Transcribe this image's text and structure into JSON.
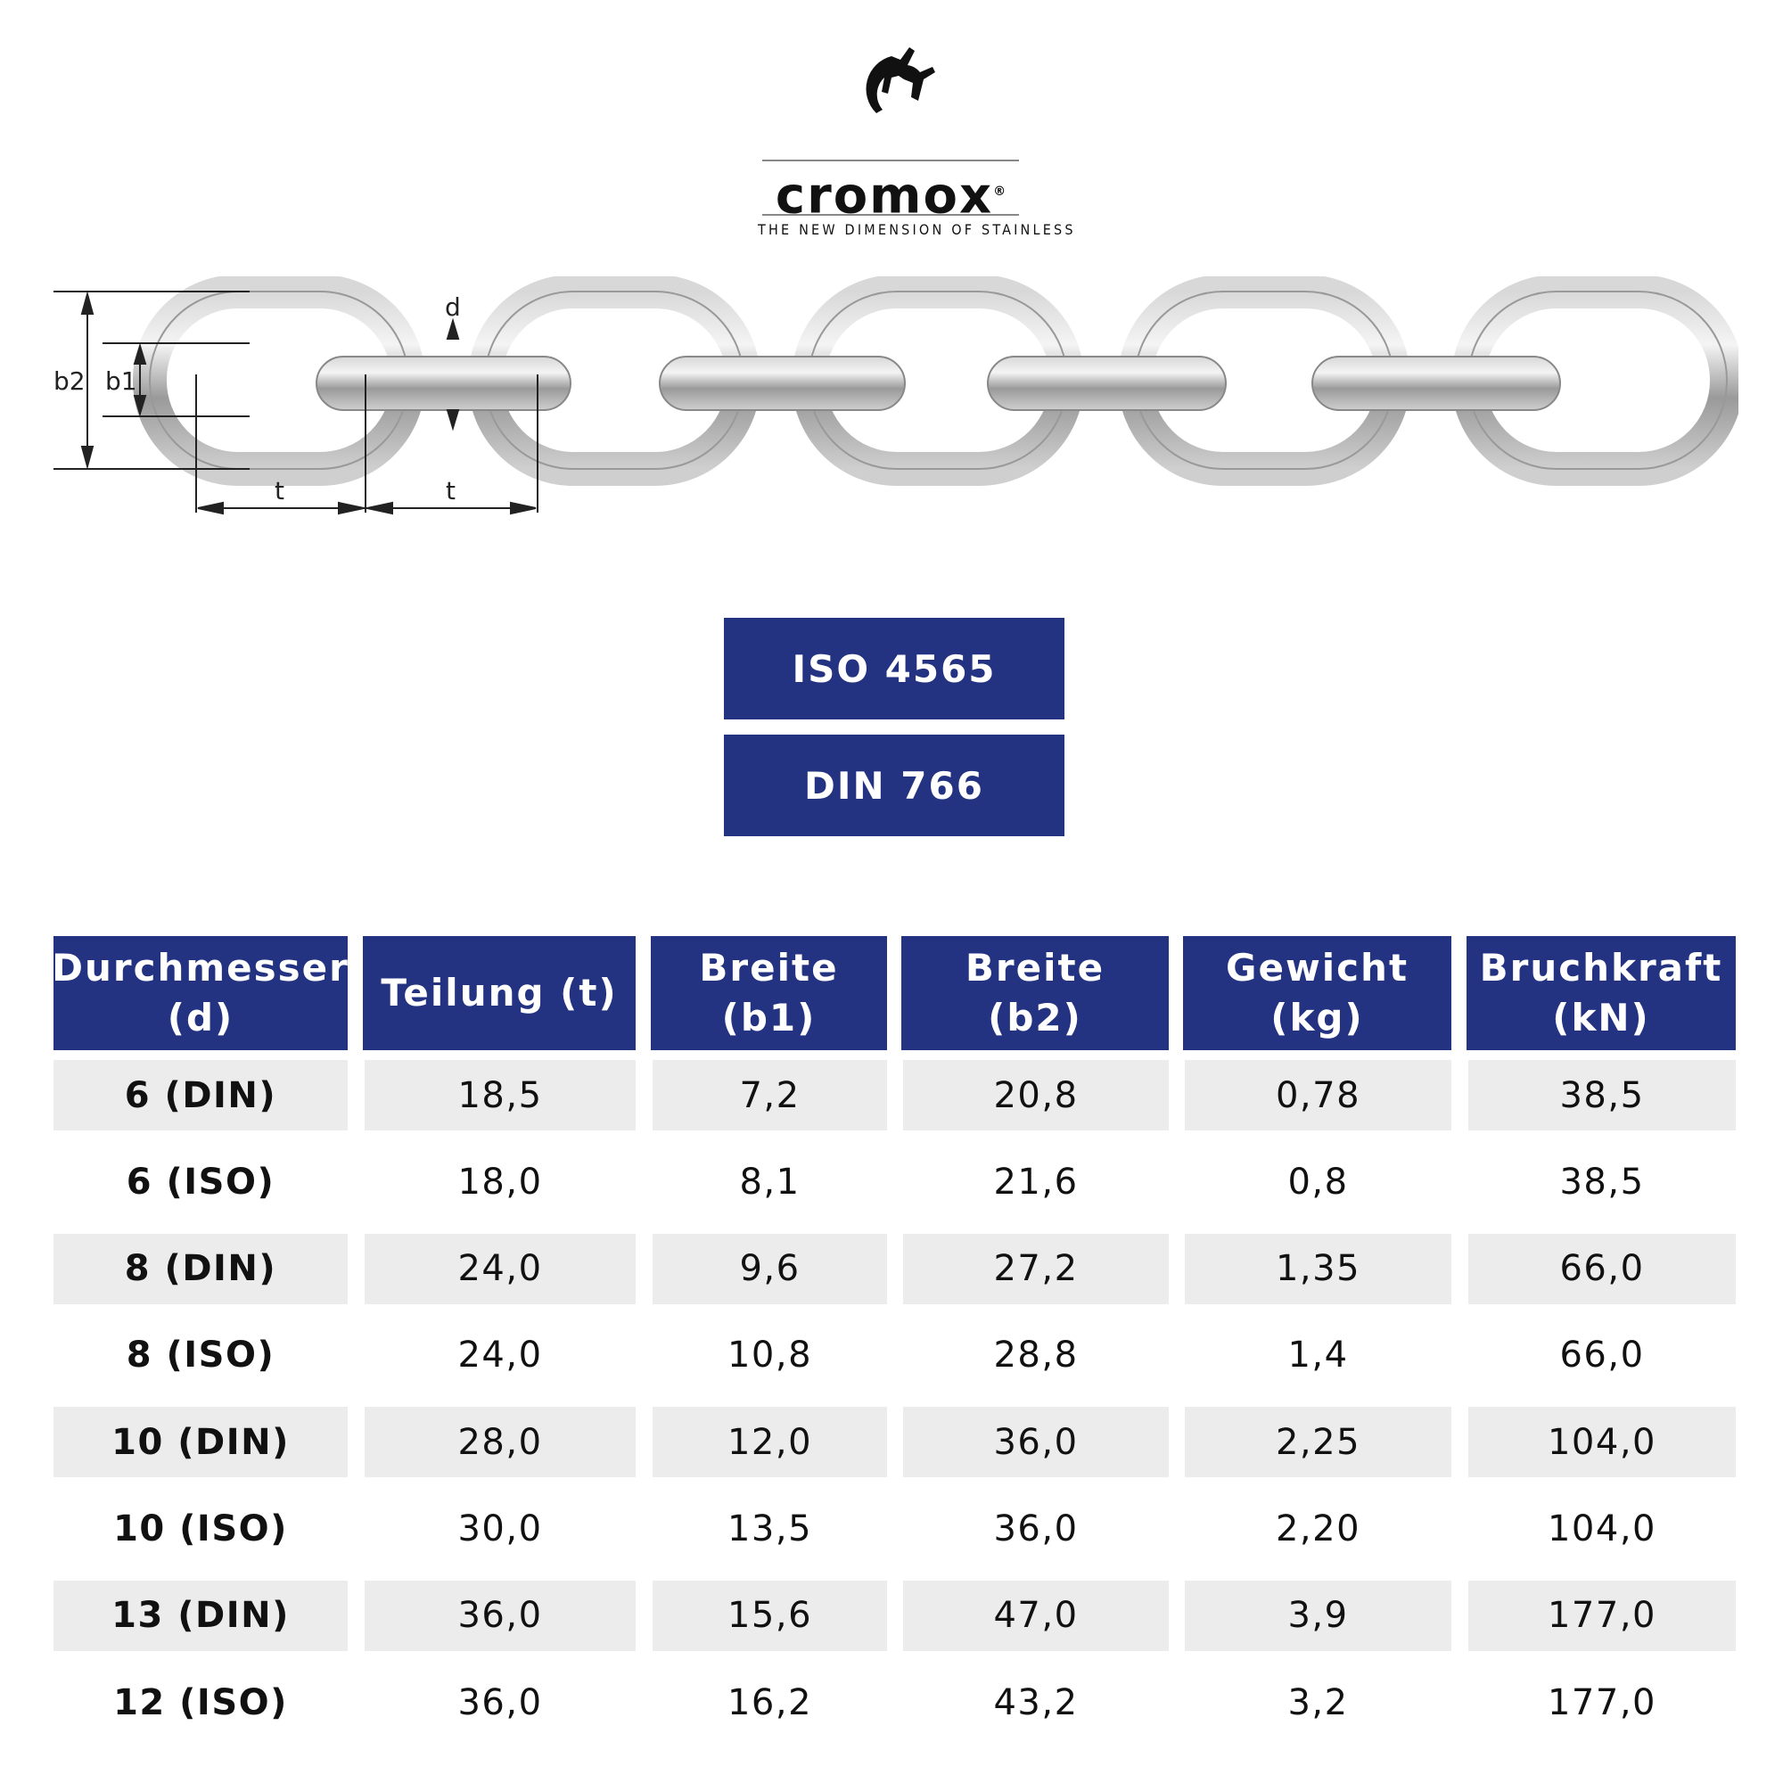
{
  "logo": {
    "wordmark": "cromox",
    "registered": "®",
    "tagline": "THE NEW DIMENSION OF STAINLESS"
  },
  "diagram": {
    "labels": {
      "b2": "b2",
      "b1": "b1",
      "d": "d",
      "t": "t"
    }
  },
  "standards": [
    "ISO 4565",
    "DIN 766"
  ],
  "table": {
    "headers": [
      [
        "Durchmesser",
        "(d)"
      ],
      [
        "Teilung (t)"
      ],
      [
        "Breite",
        "(b1)"
      ],
      [
        "Breite",
        "(b2)"
      ],
      [
        "Gewicht",
        "(kg)"
      ],
      [
        "Bruchkraft",
        "(kN)"
      ]
    ],
    "rows": [
      [
        "6 (DIN)",
        "18,5",
        "7,2",
        "20,8",
        "0,78",
        "38,5"
      ],
      [
        "6 (ISO)",
        "18,0",
        "8,1",
        "21,6",
        "0,8",
        "38,5"
      ],
      [
        "8 (DIN)",
        "24,0",
        "9,6",
        "27,2",
        "1,35",
        "66,0"
      ],
      [
        "8 (ISO)",
        "24,0",
        "10,8",
        "28,8",
        "1,4",
        "66,0"
      ],
      [
        "10 (DIN)",
        "28,0",
        "12,0",
        "36,0",
        "2,25",
        "104,0"
      ],
      [
        "10 (ISO)",
        "30,0",
        "13,5",
        "36,0",
        "2,20",
        "104,0"
      ],
      [
        "13 (DIN)",
        "36,0",
        "15,6",
        "47,0",
        "3,9",
        "177,0"
      ],
      [
        "12 (ISO)",
        "36,0",
        "16,2",
        "43,2",
        "3,2",
        "177,0"
      ]
    ]
  }
}
